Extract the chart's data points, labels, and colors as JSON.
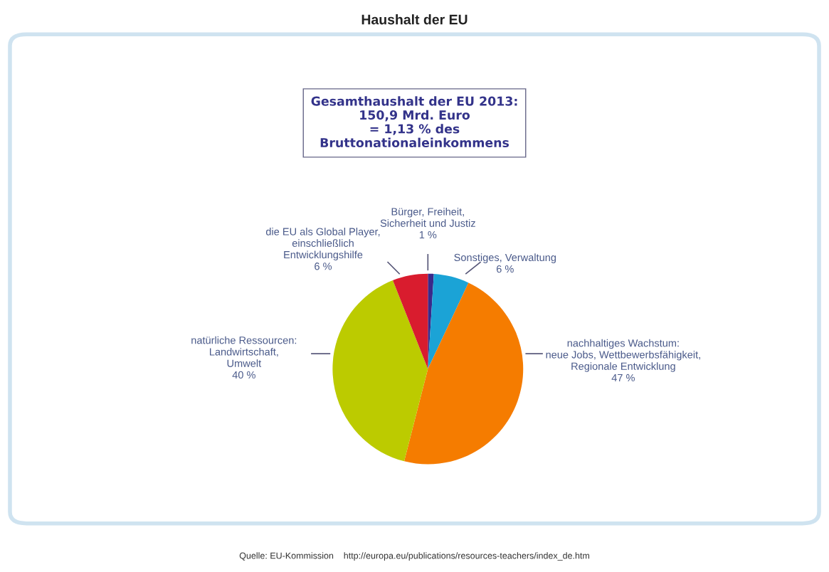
{
  "chart_data": {
    "type": "pie",
    "title": "Haushalt der EU",
    "subtitle": "Gesamthaushalt der EU 2013:\n150,9 Mrd. Euro\n= 1,13 % des\nBruttonationaleinkommens",
    "categories": [
      "Bürger, Freiheit,\nSicherheit und Justiz",
      "Sonstiges, Verwaltung",
      "nachhaltiges Wachstum:\nneue Jobs, Wettbewerbsfähigkeit,\nRegionale Entwicklung",
      "natürliche Ressourcen:\nLandwirtschaft,\nUmwelt",
      "die EU als Global Player,\neinschließlich\nEntwicklungshilfe"
    ],
    "values": [
      1,
      6,
      47,
      40,
      6
    ],
    "value_labels": [
      "1 %",
      "6 %",
      "47 %",
      "40 %",
      "6 %"
    ],
    "colors": [
      "#3a2a8a",
      "#1ba3d6",
      "#f57c00",
      "#bccb00",
      "#d91c2e"
    ],
    "annotations": [
      "Quelle: EU-Kommission    http://europa.eu/publications/resources-teachers/index_de.htm"
    ]
  }
}
